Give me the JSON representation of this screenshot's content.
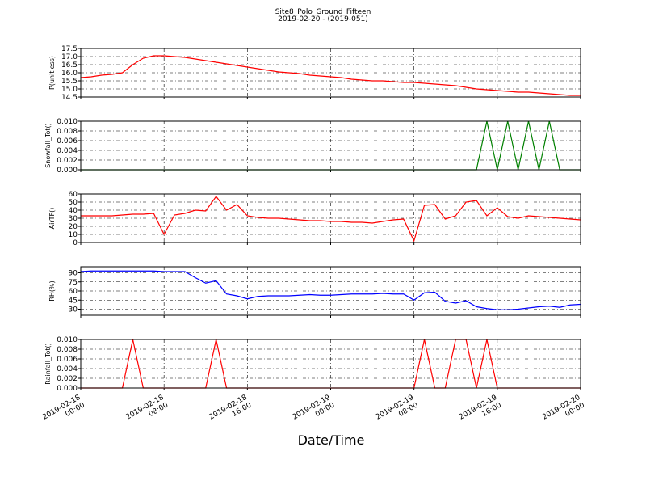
{
  "chart_data": [
    {
      "type": "line",
      "title": "Site8_Polo_Ground_Fifteen",
      "subtitle": "2019-02-20 - (2019-051)",
      "ylabel": "P(unitless)",
      "color": "#ff0000",
      "grid": true,
      "ylim": [
        14.5,
        17.5
      ],
      "yticks": [
        14.5,
        {
          "value": 15,
          "label": "15.0"
        },
        15.5,
        {
          "value": 16,
          "label": "16.0"
        },
        16.5,
        {
          "value": 17,
          "label": "17.0"
        },
        17.5
      ],
      "values": [
        15.7,
        15.75,
        15.85,
        15.9,
        16.0,
        16.5,
        16.9,
        17.05,
        17.05,
        17.0,
        16.95,
        16.85,
        16.75,
        16.65,
        16.55,
        16.45,
        16.35,
        16.25,
        16.15,
        16.05,
        16.0,
        15.95,
        15.85,
        15.8,
        15.75,
        15.7,
        15.6,
        15.55,
        15.5,
        15.5,
        15.45,
        15.4,
        15.4,
        15.35,
        15.3,
        15.25,
        15.2,
        15.1,
        15.0,
        14.95,
        14.9,
        14.85,
        14.8,
        14.8,
        14.75,
        14.7,
        14.65,
        14.6,
        14.6
      ]
    },
    {
      "type": "line",
      "ylabel": "Snowfall_Tot()",
      "color": "#008000",
      "grid": true,
      "ylim": [
        0,
        0.01
      ],
      "yticks": [
        {
          "value": 0,
          "label": "0.000"
        },
        {
          "value": 0.002,
          "label": "0.002"
        },
        {
          "value": 0.004,
          "label": "0.004"
        },
        {
          "value": 0.006,
          "label": "0.006"
        },
        {
          "value": 0.008,
          "label": "0.008"
        },
        {
          "value": 0.01,
          "label": "0.010"
        }
      ],
      "values": [
        0,
        0,
        0,
        0,
        0,
        0,
        0,
        0,
        0,
        0,
        0,
        0,
        0,
        0,
        0,
        0,
        0,
        0,
        0,
        0,
        0,
        0,
        0,
        0,
        0,
        0,
        0,
        0,
        0,
        0,
        0,
        0,
        0,
        0,
        0,
        0,
        0,
        0,
        0,
        0.01,
        0,
        0.01,
        0,
        0.01,
        0,
        0.01,
        0,
        0,
        0
      ]
    },
    {
      "type": "line",
      "ylabel": "AirTF()",
      "color": "#ff0000",
      "grid": true,
      "ylim": [
        0,
        60
      ],
      "yticks": [
        0,
        10,
        20,
        30,
        40,
        50,
        60
      ],
      "values": [
        33,
        33,
        33,
        33,
        34,
        35,
        35,
        36,
        10,
        34,
        36,
        40,
        39,
        57,
        40,
        47,
        33,
        31,
        30,
        30,
        29,
        28,
        27,
        27,
        26,
        26,
        25,
        25,
        24,
        26,
        28,
        29,
        2,
        46,
        47,
        29,
        33,
        50,
        52,
        33,
        43,
        32,
        30,
        33,
        32,
        31,
        30,
        29,
        28
      ]
    },
    {
      "type": "line",
      "ylabel": "RH(%)",
      "color": "#0000ff",
      "grid": true,
      "ylim": [
        20,
        100
      ],
      "yticks": [
        30,
        45,
        60,
        75,
        90
      ],
      "values": [
        92,
        93,
        93,
        93,
        93,
        93,
        93,
        93,
        92,
        92,
        92,
        82,
        73,
        77,
        55,
        52,
        47,
        51,
        52,
        52,
        52,
        53,
        54,
        53,
        53,
        54,
        55,
        55,
        55,
        56,
        55,
        55,
        45,
        57,
        58,
        43,
        40,
        44,
        34,
        31,
        29,
        29,
        30,
        32,
        34,
        35,
        33,
        37,
        38
      ]
    },
    {
      "type": "line",
      "ylabel": "Rainfall_Tot()",
      "xlabel": "Date/Time",
      "color": "#ff0000",
      "grid": true,
      "ylim": [
        0,
        0.01
      ],
      "yticks": [
        {
          "value": 0,
          "label": "0.000"
        },
        {
          "value": 0.002,
          "label": "0.002"
        },
        {
          "value": 0.004,
          "label": "0.004"
        },
        {
          "value": 0.006,
          "label": "0.006"
        },
        {
          "value": 0.008,
          "label": "0.008"
        },
        {
          "value": 0.01,
          "label": "0.010"
        }
      ],
      "xlim": [
        "2019-02-18 00:00",
        "2019-02-20 00:00"
      ],
      "xticks": [
        "2019-02-18 00:00",
        "2019-02-18 08:00",
        "2019-02-18 16:00",
        "2019-02-19 00:00",
        "2019-02-19 08:00",
        "2019-02-19 16:00",
        "2019-02-20 00:00"
      ],
      "x": [
        "2019-02-18 00:00",
        "2019-02-18 01:00",
        "2019-02-18 02:00",
        "2019-02-18 03:00",
        "2019-02-18 04:00",
        "2019-02-18 05:00",
        "2019-02-18 06:00",
        "2019-02-18 07:00",
        "2019-02-18 08:00",
        "2019-02-18 09:00",
        "2019-02-18 10:00",
        "2019-02-18 11:00",
        "2019-02-18 12:00",
        "2019-02-18 13:00",
        "2019-02-18 14:00",
        "2019-02-18 15:00",
        "2019-02-18 16:00",
        "2019-02-18 17:00",
        "2019-02-18 18:00",
        "2019-02-18 19:00",
        "2019-02-18 20:00",
        "2019-02-18 21:00",
        "2019-02-18 22:00",
        "2019-02-18 23:00",
        "2019-02-19 00:00",
        "2019-02-19 01:00",
        "2019-02-19 02:00",
        "2019-02-19 03:00",
        "2019-02-19 04:00",
        "2019-02-19 05:00",
        "2019-02-19 06:00",
        "2019-02-19 07:00",
        "2019-02-19 08:00",
        "2019-02-19 09:00",
        "2019-02-19 10:00",
        "2019-02-19 11:00",
        "2019-02-19 12:00",
        "2019-02-19 13:00",
        "2019-02-19 14:00",
        "2019-02-19 15:00",
        "2019-02-19 16:00",
        "2019-02-19 17:00",
        "2019-02-19 18:00",
        "2019-02-19 19:00",
        "2019-02-19 20:00",
        "2019-02-19 21:00",
        "2019-02-19 22:00",
        "2019-02-19 23:00",
        "2019-02-20 00:00"
      ],
      "values": [
        0,
        0,
        0,
        0,
        0,
        0.01,
        0,
        0,
        0,
        0,
        0,
        0,
        0,
        0.01,
        0,
        0,
        0,
        0,
        0,
        0,
        0,
        0,
        0,
        0,
        0,
        0,
        0,
        0,
        0,
        0,
        0,
        0,
        0,
        0.01,
        0,
        0,
        0.01,
        0.01,
        0,
        0.01,
        0,
        0,
        0,
        0,
        0,
        0,
        0,
        0,
        0
      ]
    }
  ]
}
